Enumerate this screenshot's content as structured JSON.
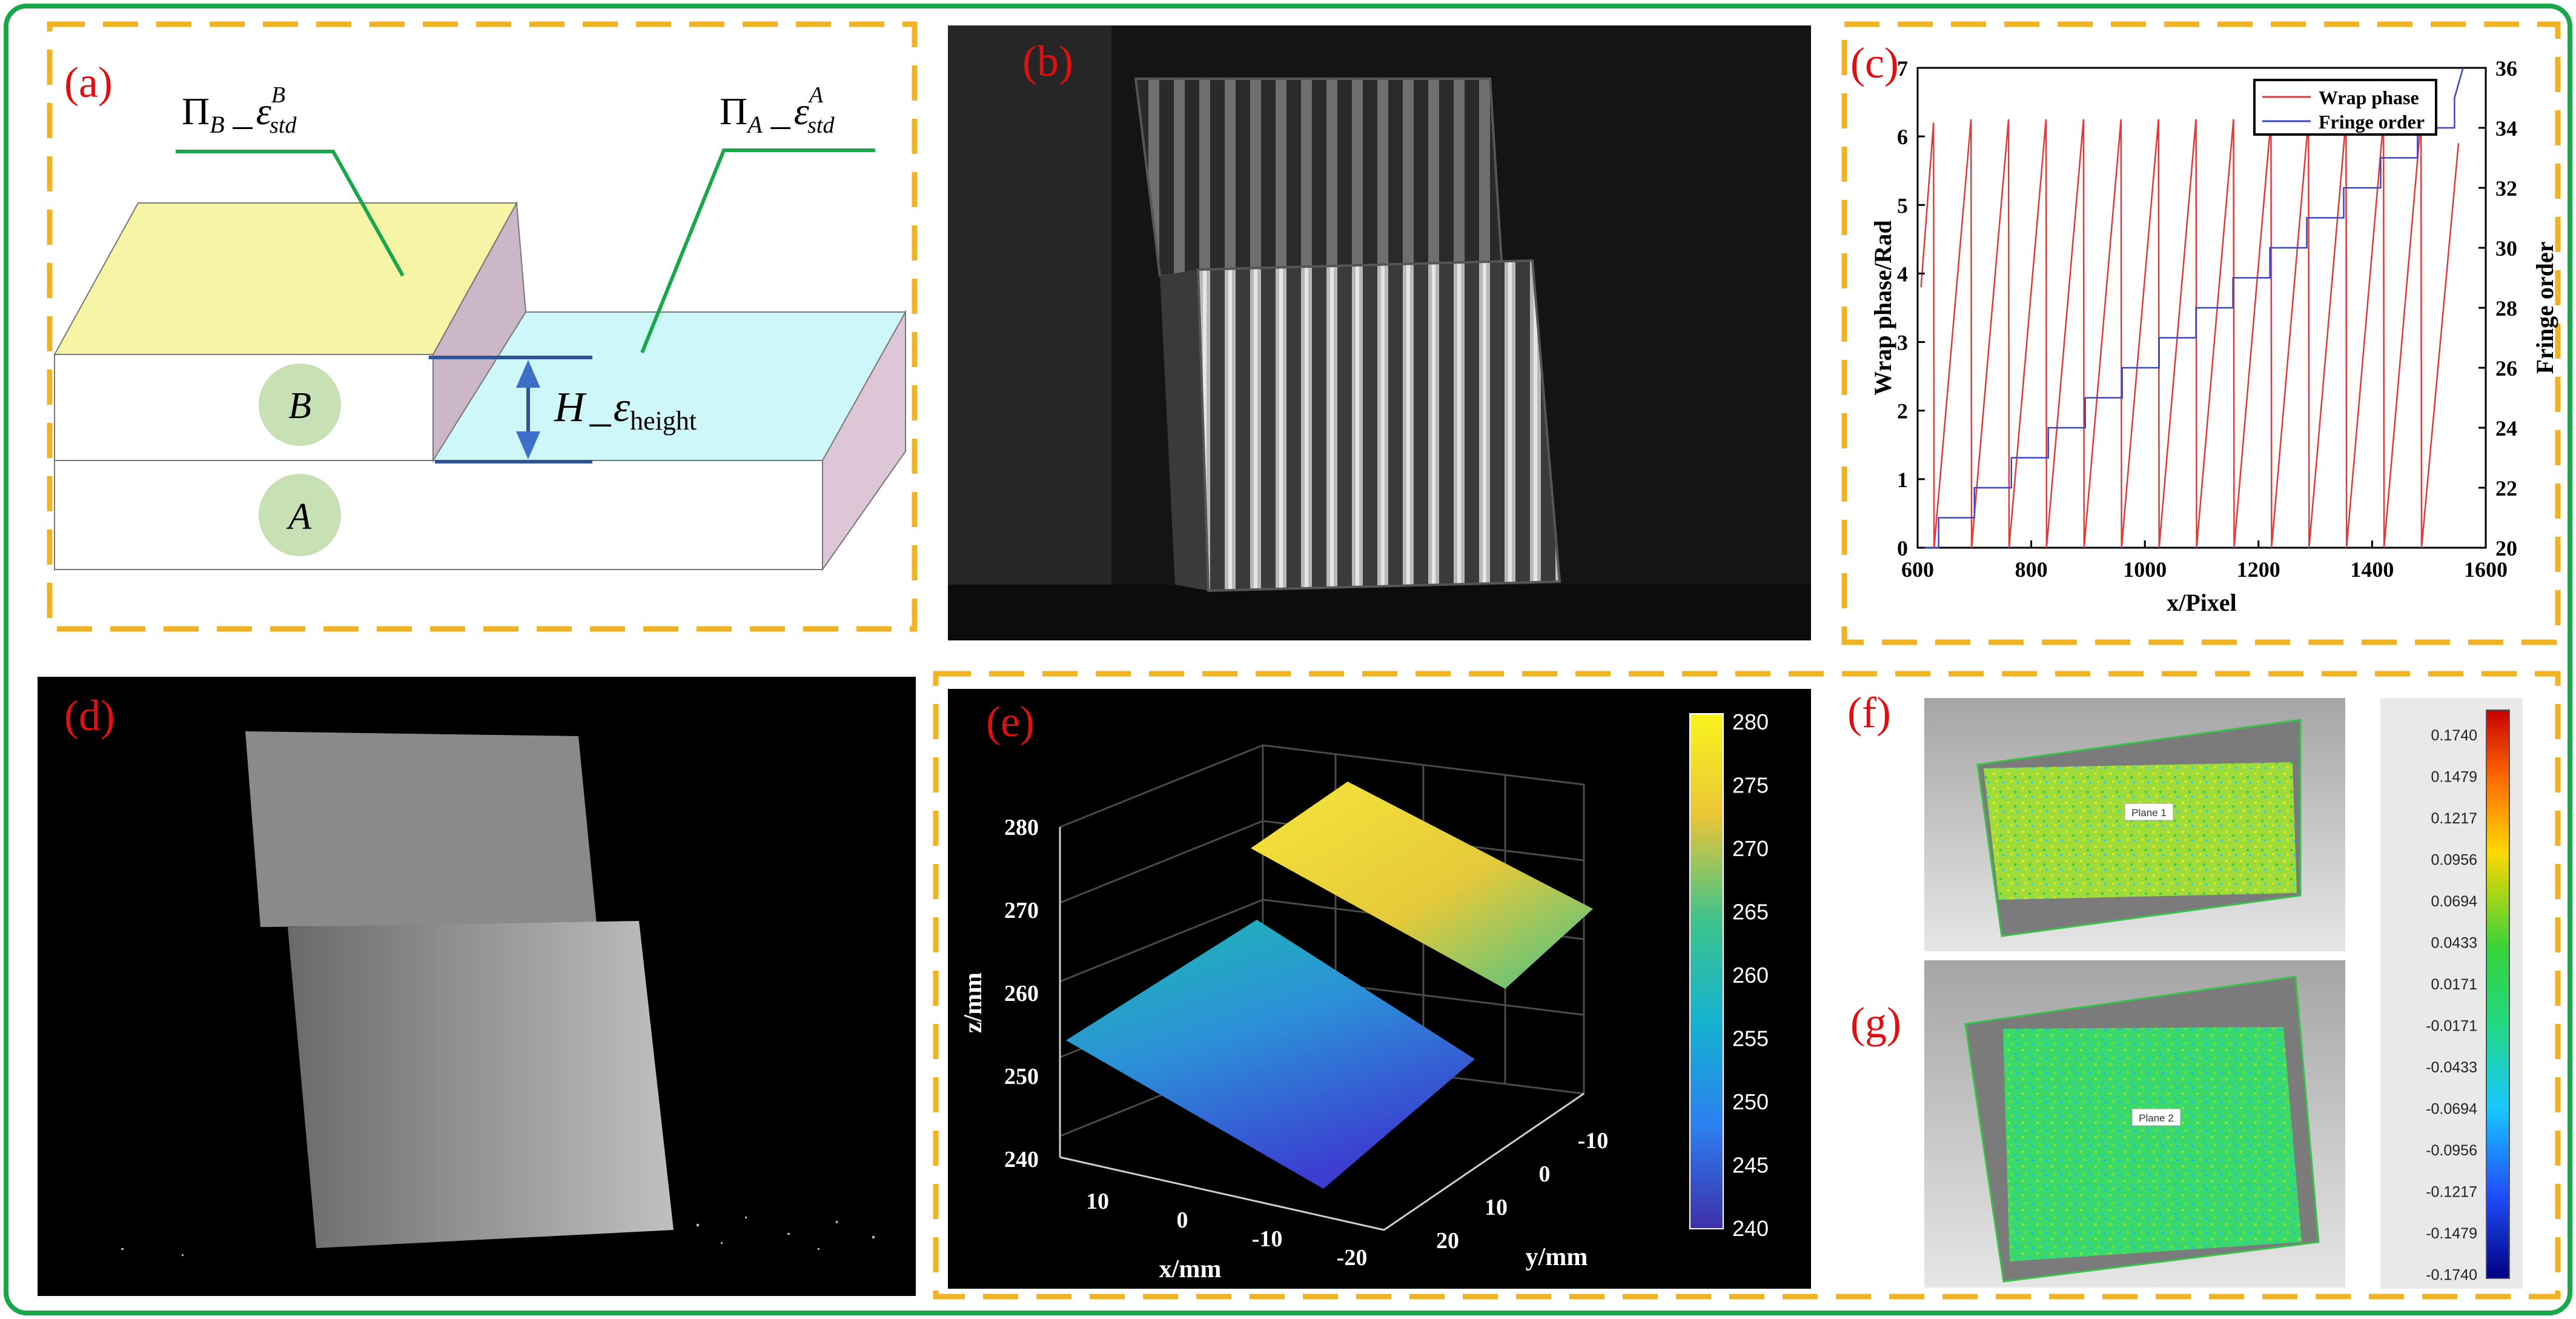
{
  "colors": {
    "frame_green": "#1aa64a",
    "dash_orange": "#f0b323",
    "panel_label": "#e01010",
    "wrap_phase": "#e03a3a",
    "fringe_order": "#3a45c8"
  },
  "panels": {
    "a": {
      "label": "(a)",
      "pi_b": "Π",
      "pi_b_sub": "B",
      "pi_b_eps": "ε",
      "pi_b_eps_sup": "B",
      "pi_b_eps_sub": "std",
      "pi_a": "Π",
      "pi_a_sub": "A",
      "pi_a_eps": "ε",
      "pi_a_eps_sup": "A",
      "pi_a_eps_sub": "std",
      "height_h": "H",
      "height_eps": "ε",
      "height_sub": "height",
      "block_b": "B",
      "block_a": "A"
    },
    "b": {
      "label": "(b)"
    },
    "c": {
      "label": "(c)"
    },
    "d": {
      "label": "(d)"
    },
    "e": {
      "label": "(e)",
      "zlabel": "z/mm",
      "xlabel": "x/mm",
      "ylabel": "y/mm",
      "zticks": [
        "280",
        "270",
        "260",
        "250",
        "240"
      ],
      "xticks": [
        "10",
        "0",
        "-10",
        "-20"
      ],
      "yticks": [
        "-10",
        "0",
        "10",
        "20"
      ],
      "colorbar_ticks": [
        "280",
        "275",
        "270",
        "265",
        "260",
        "255",
        "250",
        "245",
        "240"
      ]
    },
    "f": {
      "label": "(f)",
      "plane_tag": "Plane 1"
    },
    "g": {
      "label": "(g)",
      "plane_tag": "Plane 2"
    },
    "scale": {
      "ticks": [
        "0.1740",
        "0.1479",
        "0.1217",
        "0.0956",
        "0.0694",
        "0.0433",
        "0.0171",
        "-0.0171",
        "-0.0433",
        "-0.0694",
        "-0.0956",
        "-0.1217",
        "-0.1479",
        "-0.1740"
      ]
    }
  },
  "chart_data": [
    {
      "type": "line",
      "panel": "(c)",
      "xlabel": "x/Pixel",
      "ylabel": "Wrap phase/Rad",
      "ylabel_right": "Fringe order",
      "xlim": [
        600,
        1600
      ],
      "ylim": [
        0,
        7
      ],
      "ylim_right": [
        20,
        36
      ],
      "xticks": [
        "600",
        "800",
        "1000",
        "1200",
        "1400",
        "1600"
      ],
      "yticks": [
        "0",
        "1",
        "2",
        "3",
        "4",
        "5",
        "6",
        "7"
      ],
      "yticks_right": [
        "20",
        "22",
        "24",
        "26",
        "28",
        "30",
        "32",
        "34",
        "36"
      ],
      "legend_position": "top-right",
      "series": [
        {
          "name": "Wrap phase",
          "axis": "left",
          "x": [
            606,
            628,
            629,
            694,
            695,
            760,
            761,
            826,
            827,
            892,
            893,
            958,
            959,
            1024,
            1025,
            1090,
            1091,
            1156,
            1157,
            1222,
            1223,
            1288,
            1289,
            1354,
            1355,
            1420,
            1421,
            1486,
            1487,
            1552
          ],
          "values": [
            3.8,
            6.2,
            0,
            6.25,
            0,
            6.25,
            0,
            6.25,
            0,
            6.25,
            0,
            6.25,
            0,
            6.25,
            0,
            6.25,
            0,
            6.25,
            0,
            6.25,
            0,
            6.25,
            0,
            6.25,
            0,
            6.25,
            0,
            6.25,
            0,
            5.9
          ]
        },
        {
          "name": "Fringe order",
          "axis": "right",
          "x": [
            606,
            637,
            637,
            700,
            700,
            765,
            765,
            830,
            830,
            895,
            895,
            960,
            960,
            1025,
            1025,
            1090,
            1090,
            1155,
            1155,
            1220,
            1220,
            1285,
            1285,
            1350,
            1350,
            1415,
            1415,
            1480,
            1480,
            1545,
            1545,
            1560
          ],
          "values": [
            20,
            20,
            21,
            21,
            22,
            22,
            23,
            23,
            24,
            24,
            25,
            25,
            26,
            26,
            27,
            27,
            28,
            28,
            29,
            29,
            30,
            30,
            31,
            31,
            32,
            32,
            33,
            33,
            34,
            34,
            35,
            36
          ]
        }
      ]
    }
  ]
}
